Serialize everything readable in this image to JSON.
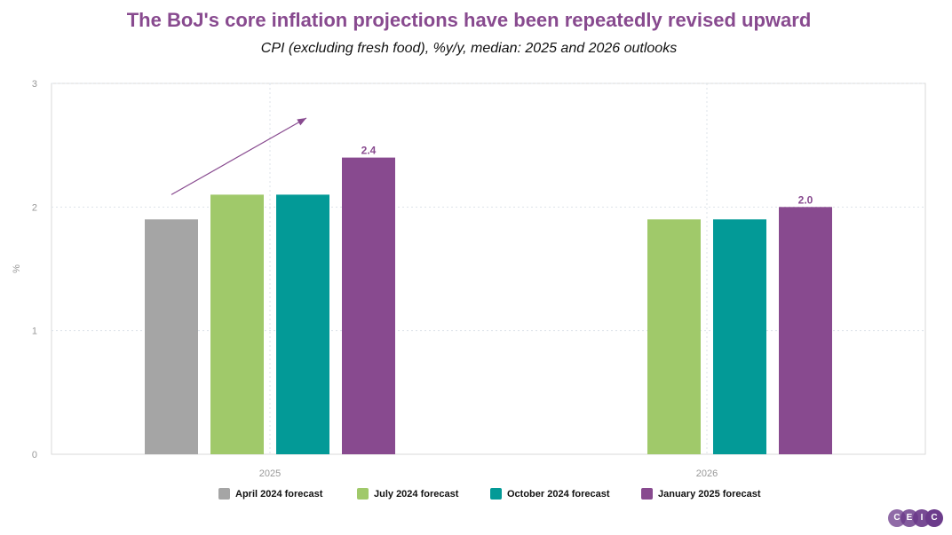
{
  "title": "The BoJ's core inflation projections have been repeatedly revised upward",
  "subtitle": "CPI (excluding fresh food), %y/y, median: 2025 and 2026 outlooks",
  "logo": {
    "letters": [
      "C",
      "E",
      "I",
      "C"
    ],
    "color": "#6b3a8a"
  },
  "chart_data": {
    "type": "bar",
    "title": "The BoJ's core inflation projections have been repeatedly revised upward",
    "subtitle": "CPI (excluding fresh food), %y/y, median: 2025 and 2026 outlooks",
    "xlabel": "",
    "ylabel": "%",
    "ylim": [
      0,
      3
    ],
    "yticks": [
      0,
      1,
      2,
      3
    ],
    "categories": [
      "2025",
      "2026"
    ],
    "grid": true,
    "legend_position": "bottom",
    "series": [
      {
        "name": "April 2024 forecast",
        "color": "#a5a5a5",
        "values": [
          1.9,
          null
        ]
      },
      {
        "name": "July 2024 forecast",
        "color": "#a0c96a",
        "values": [
          2.1,
          1.9
        ]
      },
      {
        "name": "October 2024 forecast",
        "color": "#039a97",
        "values": [
          2.1,
          1.9
        ]
      },
      {
        "name": "January 2025 forecast",
        "color": "#884a8f",
        "values": [
          2.4,
          2.0
        ]
      }
    ],
    "data_labels": [
      {
        "series": "January 2025 forecast",
        "category": "2025",
        "text": "2.4"
      },
      {
        "series": "January 2025 forecast",
        "category": "2026",
        "text": "2.0"
      }
    ],
    "annotations": [
      {
        "type": "arrow",
        "color": "#884a8f",
        "category": "2025",
        "note": "upward revision trend"
      }
    ]
  }
}
